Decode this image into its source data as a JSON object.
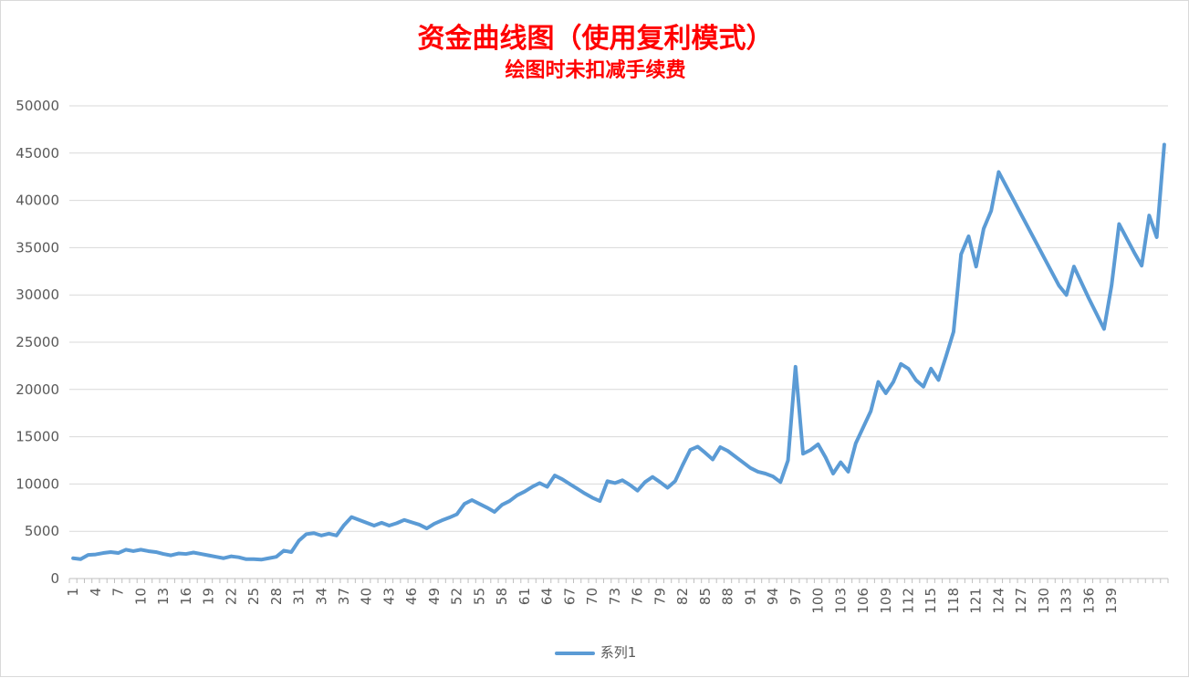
{
  "chart_data": {
    "type": "line",
    "title": "资金曲线图（使用复利模式）",
    "subtitle": "绘图时未扣减手续费",
    "xlabel": "",
    "ylabel": "",
    "ylim": [
      0,
      50000
    ],
    "yticks": [
      0,
      5000,
      10000,
      15000,
      20000,
      25000,
      30000,
      35000,
      40000,
      45000,
      50000
    ],
    "xtick_labels": [
      "1",
      "4",
      "7",
      "10",
      "13",
      "16",
      "19",
      "22",
      "25",
      "28",
      "31",
      "34",
      "37",
      "40",
      "43",
      "46",
      "49",
      "52",
      "55",
      "58",
      "61",
      "64",
      "67",
      "70",
      "73",
      "76",
      "79",
      "82",
      "85",
      "88",
      "91",
      "94",
      "97",
      "100",
      "103",
      "106",
      "109",
      "112",
      "115",
      "118",
      "121",
      "124",
      "127",
      "130",
      "133",
      "136",
      "139"
    ],
    "grid": true,
    "legend": "bottom",
    "color": "#5b9bd5",
    "series": [
      {
        "name": "系列1",
        "values": [
          2150,
          2050,
          2500,
          2550,
          2700,
          2800,
          2700,
          3050,
          2900,
          3050,
          2900,
          2800,
          2600,
          2450,
          2650,
          2600,
          2750,
          2600,
          2450,
          2300,
          2150,
          2350,
          2250,
          2050,
          2050,
          2000,
          2150,
          2300,
          2950,
          2800,
          4000,
          4700,
          4800,
          4550,
          4750,
          4550,
          5650,
          6500,
          6200,
          5900,
          5600,
          5900,
          5600,
          5850,
          6200,
          5950,
          5700,
          5300,
          5800,
          6150,
          6450,
          6800,
          7900,
          8300,
          7900,
          7500,
          7050,
          7800,
          8200,
          8800,
          9200,
          9700,
          10100,
          9700,
          10900,
          10500,
          10000,
          9500,
          9000,
          8550,
          8200,
          10300,
          10100,
          10400,
          9900,
          9300,
          10200,
          10750,
          10200,
          9600,
          10300,
          12000,
          13600,
          13950,
          13300,
          12600,
          13900,
          13500,
          12900,
          12300,
          11700,
          11300,
          11100,
          10800,
          10200,
          12500,
          22400,
          13200,
          13600,
          14200,
          12800,
          11100,
          12300,
          11300,
          14300,
          16000,
          17700,
          20800,
          19600,
          20800,
          22700,
          22200,
          21000,
          20300,
          22200,
          21000,
          23500,
          26100,
          34300,
          36200,
          33000,
          37000,
          38900,
          43000,
          41500,
          40000,
          38500,
          37000,
          35500,
          34000,
          32500,
          31000,
          30000,
          33000,
          31300,
          29600,
          28000,
          26400,
          31000,
          37500,
          36000,
          34500,
          33100,
          38400,
          36100,
          45900
        ]
      }
    ]
  }
}
